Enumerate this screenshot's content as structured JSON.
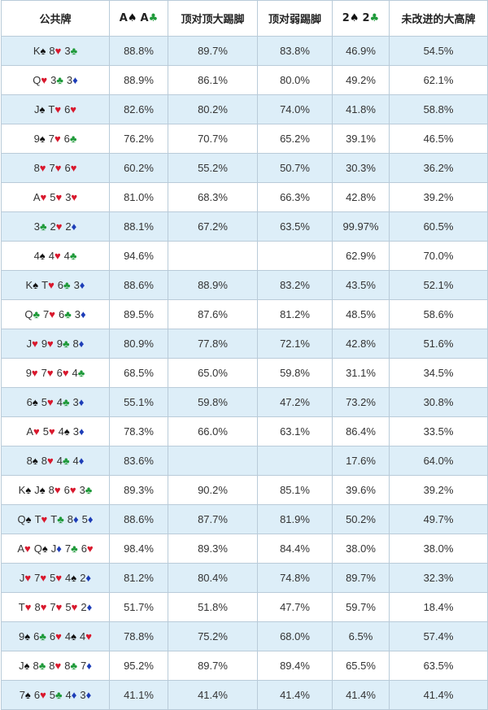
{
  "colors": {
    "hearts": "#d9182d",
    "diamonds": "#1d3db8",
    "clubs": "#1f9a3a",
    "spades": "#111111",
    "row_alt": "#ddeef8",
    "border": "#b9cbd9"
  },
  "headers": [
    {
      "text": "公共牌"
    },
    {
      "cards": [
        {
          "rank": "A",
          "suit": "♠"
        },
        {
          "rank": "A",
          "suit": "♣"
        }
      ]
    },
    {
      "text": "顶对顶大踢脚"
    },
    {
      "text": "顶对弱踢脚"
    },
    {
      "cards": [
        {
          "rank": "2",
          "suit": "♠"
        },
        {
          "rank": "2",
          "suit": "♣"
        }
      ]
    },
    {
      "text": "未改进的大高牌"
    }
  ],
  "rows": [
    {
      "board": [
        {
          "rank": "K",
          "suit": "♠"
        },
        {
          "rank": "8",
          "suit": "♥"
        },
        {
          "rank": "3",
          "suit": "♣"
        }
      ],
      "values": [
        "88.8%",
        "89.7%",
        "83.8%",
        "46.9%",
        "54.5%"
      ]
    },
    {
      "board": [
        {
          "rank": "Q",
          "suit": "♥"
        },
        {
          "rank": "3",
          "suit": "♣"
        },
        {
          "rank": "3",
          "suit": "♦"
        }
      ],
      "values": [
        "88.9%",
        "86.1%",
        "80.0%",
        "49.2%",
        "62.1%"
      ]
    },
    {
      "board": [
        {
          "rank": "J",
          "suit": "♠"
        },
        {
          "rank": "T",
          "suit": "♥"
        },
        {
          "rank": "6",
          "suit": "♥"
        }
      ],
      "values": [
        "82.6%",
        "80.2%",
        "74.0%",
        "41.8%",
        "58.8%"
      ]
    },
    {
      "board": [
        {
          "rank": "9",
          "suit": "♠"
        },
        {
          "rank": "7",
          "suit": "♥"
        },
        {
          "rank": "6",
          "suit": "♣"
        }
      ],
      "values": [
        "76.2%",
        "70.7%",
        "65.2%",
        "39.1%",
        "46.5%"
      ]
    },
    {
      "board": [
        {
          "rank": "8",
          "suit": "♥"
        },
        {
          "rank": "7",
          "suit": "♥"
        },
        {
          "rank": "6",
          "suit": "♥"
        }
      ],
      "values": [
        "60.2%",
        "55.2%",
        "50.7%",
        "30.3%",
        "36.2%"
      ]
    },
    {
      "board": [
        {
          "rank": "A",
          "suit": "♥"
        },
        {
          "rank": "5",
          "suit": "♥"
        },
        {
          "rank": "3",
          "suit": "♥"
        }
      ],
      "values": [
        "81.0%",
        "68.3%",
        "66.3%",
        "42.8%",
        "39.2%"
      ]
    },
    {
      "board": [
        {
          "rank": "3",
          "suit": "♣"
        },
        {
          "rank": "2",
          "suit": "♥"
        },
        {
          "rank": "2",
          "suit": "♦"
        }
      ],
      "values": [
        "88.1%",
        "67.2%",
        "63.5%",
        "99.97%",
        "60.5%"
      ]
    },
    {
      "board": [
        {
          "rank": "4",
          "suit": "♠"
        },
        {
          "rank": "4",
          "suit": "♥"
        },
        {
          "rank": "4",
          "suit": "♣"
        }
      ],
      "values": [
        "94.6%",
        "",
        "",
        "62.9%",
        "70.0%"
      ]
    },
    {
      "board": [
        {
          "rank": "K",
          "suit": "♠"
        },
        {
          "rank": "T",
          "suit": "♥"
        },
        {
          "rank": "6",
          "suit": "♣"
        },
        {
          "rank": "3",
          "suit": "♦"
        }
      ],
      "values": [
        "88.6%",
        "88.9%",
        "83.2%",
        "43.5%",
        "52.1%"
      ]
    },
    {
      "board": [
        {
          "rank": "Q",
          "suit": "♣"
        },
        {
          "rank": "7",
          "suit": "♥"
        },
        {
          "rank": "6",
          "suit": "♣"
        },
        {
          "rank": "3",
          "suit": "♦"
        }
      ],
      "values": [
        "89.5%",
        "87.6%",
        "81.2%",
        "48.5%",
        "58.6%"
      ]
    },
    {
      "board": [
        {
          "rank": "J",
          "suit": "♥"
        },
        {
          "rank": "9",
          "suit": "♥"
        },
        {
          "rank": "9",
          "suit": "♣"
        },
        {
          "rank": "8",
          "suit": "♦"
        }
      ],
      "values": [
        "80.9%",
        "77.8%",
        "72.1%",
        "42.8%",
        "51.6%"
      ]
    },
    {
      "board": [
        {
          "rank": "9",
          "suit": "♥"
        },
        {
          "rank": "7",
          "suit": "♥"
        },
        {
          "rank": "6",
          "suit": "♥"
        },
        {
          "rank": "4",
          "suit": "♣"
        }
      ],
      "values": [
        "68.5%",
        "65.0%",
        "59.8%",
        "31.1%",
        "34.5%"
      ]
    },
    {
      "board": [
        {
          "rank": "6",
          "suit": "♠"
        },
        {
          "rank": "5",
          "suit": "♥"
        },
        {
          "rank": "4",
          "suit": "♣"
        },
        {
          "rank": "3",
          "suit": "♦"
        }
      ],
      "values": [
        "55.1%",
        "59.8%",
        "47.2%",
        "73.2%",
        "30.8%"
      ]
    },
    {
      "board": [
        {
          "rank": "A",
          "suit": "♥"
        },
        {
          "rank": "5",
          "suit": "♥"
        },
        {
          "rank": "4",
          "suit": "♠"
        },
        {
          "rank": "3",
          "suit": "♦"
        }
      ],
      "values": [
        "78.3%",
        "66.0%",
        "63.1%",
        "86.4%",
        "33.5%"
      ]
    },
    {
      "board": [
        {
          "rank": "8",
          "suit": "♠"
        },
        {
          "rank": "8",
          "suit": "♥"
        },
        {
          "rank": "4",
          "suit": "♣"
        },
        {
          "rank": "4",
          "suit": "♦"
        }
      ],
      "values": [
        "83.6%",
        "",
        "",
        "17.6%",
        "64.0%"
      ]
    },
    {
      "board": [
        {
          "rank": "K",
          "suit": "♠"
        },
        {
          "rank": "J",
          "suit": "♠"
        },
        {
          "rank": "8",
          "suit": "♥"
        },
        {
          "rank": "6",
          "suit": "♥"
        },
        {
          "rank": "3",
          "suit": "♣"
        }
      ],
      "values": [
        "89.3%",
        "90.2%",
        "85.1%",
        "39.6%",
        "39.2%"
      ]
    },
    {
      "board": [
        {
          "rank": "Q",
          "suit": "♠"
        },
        {
          "rank": "T",
          "suit": "♥"
        },
        {
          "rank": "T",
          "suit": "♣"
        },
        {
          "rank": "8",
          "suit": "♦"
        },
        {
          "rank": "5",
          "suit": "♦"
        }
      ],
      "values": [
        "88.6%",
        "87.7%",
        "81.9%",
        "50.2%",
        "49.7%"
      ]
    },
    {
      "board": [
        {
          "rank": "A",
          "suit": "♥"
        },
        {
          "rank": "Q",
          "suit": "♠"
        },
        {
          "rank": "J",
          "suit": "♦"
        },
        {
          "rank": "7",
          "suit": "♣"
        },
        {
          "rank": "6",
          "suit": "♥"
        }
      ],
      "values": [
        "98.4%",
        "89.3%",
        "84.4%",
        "38.0%",
        "38.0%"
      ]
    },
    {
      "board": [
        {
          "rank": "J",
          "suit": "♥"
        },
        {
          "rank": "7",
          "suit": "♥"
        },
        {
          "rank": "5",
          "suit": "♥"
        },
        {
          "rank": "4",
          "suit": "♠"
        },
        {
          "rank": "2",
          "suit": "♦"
        }
      ],
      "values": [
        "81.2%",
        "80.4%",
        "74.8%",
        "89.7%",
        "32.3%"
      ]
    },
    {
      "board": [
        {
          "rank": "T",
          "suit": "♥"
        },
        {
          "rank": "8",
          "suit": "♥"
        },
        {
          "rank": "7",
          "suit": "♥"
        },
        {
          "rank": "5",
          "suit": "♥"
        },
        {
          "rank": "2",
          "suit": "♦"
        }
      ],
      "values": [
        "51.7%",
        "51.8%",
        "47.7%",
        "59.7%",
        "18.4%"
      ]
    },
    {
      "board": [
        {
          "rank": "9",
          "suit": "♠"
        },
        {
          "rank": "6",
          "suit": "♣"
        },
        {
          "rank": "6",
          "suit": "♥"
        },
        {
          "rank": "4",
          "suit": "♠"
        },
        {
          "rank": "4",
          "suit": "♥"
        }
      ],
      "values": [
        "78.8%",
        "75.2%",
        "68.0%",
        "6.5%",
        "57.4%"
      ]
    },
    {
      "board": [
        {
          "rank": "J",
          "suit": "♠"
        },
        {
          "rank": "8",
          "suit": "♣"
        },
        {
          "rank": "8",
          "suit": "♥"
        },
        {
          "rank": "8",
          "suit": "♣"
        },
        {
          "rank": "7",
          "suit": "♦"
        }
      ],
      "values": [
        "95.2%",
        "89.7%",
        "89.4%",
        "65.5%",
        "63.5%"
      ]
    },
    {
      "board": [
        {
          "rank": "7",
          "suit": "♠"
        },
        {
          "rank": "6",
          "suit": "♥"
        },
        {
          "rank": "5",
          "suit": "♣"
        },
        {
          "rank": "4",
          "suit": "♦"
        },
        {
          "rank": "3",
          "suit": "♦"
        }
      ],
      "values": [
        "41.1%",
        "41.4%",
        "41.4%",
        "41.4%",
        "41.4%"
      ]
    }
  ]
}
